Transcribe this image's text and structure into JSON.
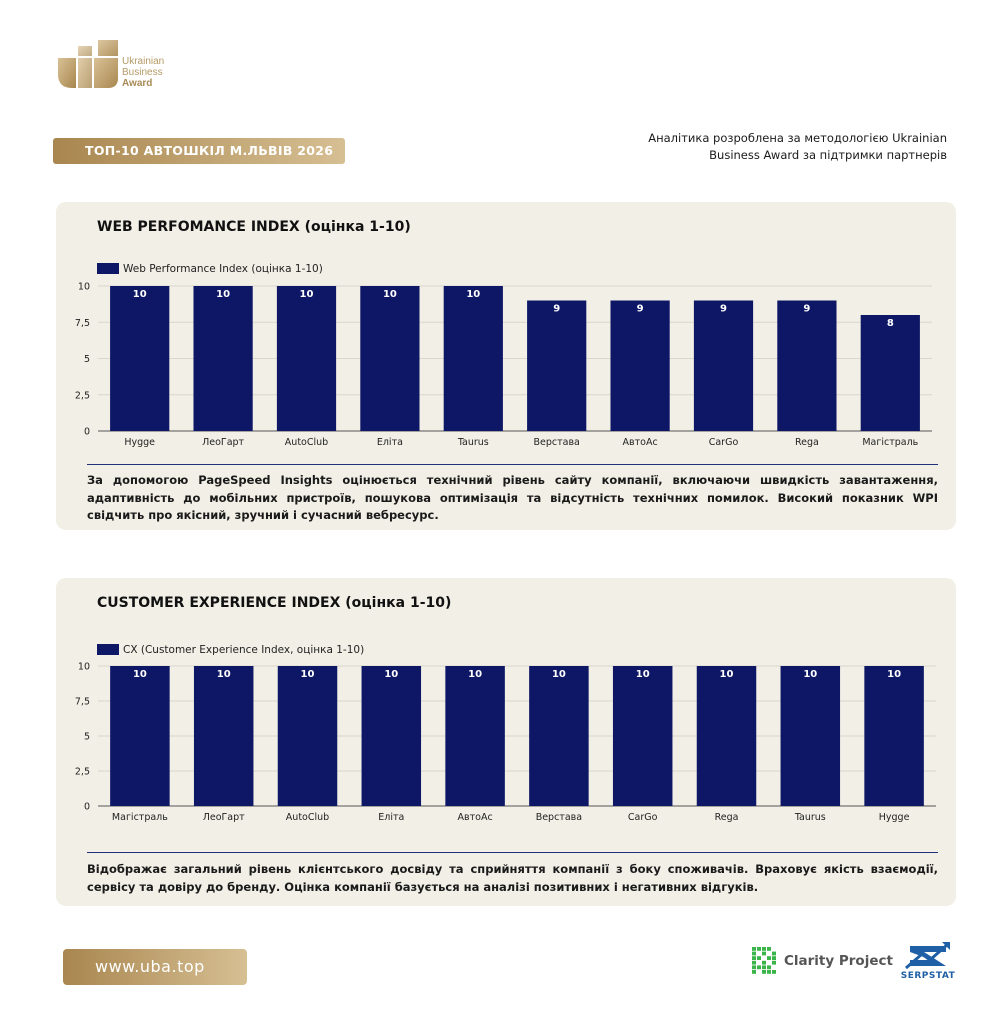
{
  "brand": {
    "logo_line1": "Ukrainian",
    "logo_line2": "Business",
    "logo_line3": "Award",
    "gold": "#b08f58"
  },
  "header": {
    "title": "ТОП-10 АВТОШКІЛ М.ЛЬВІВ 2026",
    "note": "Аналітика розроблена за методологією Ukrainian Business Award за підтримки партнерів"
  },
  "sections": [
    {
      "title": "WEB PERFOMANCE INDEX (оцінка 1-10)",
      "description": "За допомогою PageSpeed Insights оцінюється технічний рівень сайту компанії, включаючи швидкість завантаження, адаптивність до мобільних пристроїв, пошукова оптимізація та відсутність технічних помилок. Високий показник WPI свідчить про якісний, зручний і сучасний вебресурс."
    },
    {
      "title": "CUSTOMER EXPERIENCE INDEX (оцінка 1-10)",
      "description": "Відображає загальний рівень клієнтського досвіду та сприйняття компанії з боку споживачів. Враховує якість взаємодії, сервісу та довіру до бренду. Оцінка компанії базується на аналізі позитивних і негативних відгуків."
    }
  ],
  "chart_data": [
    {
      "type": "bar",
      "categories": [
        "Hygge",
        "ЛеоГарт",
        "AutoClub",
        "Еліта",
        "Taurus",
        "Верстава",
        "АвтоАс",
        "CarGo",
        "Rega",
        "Магістраль"
      ],
      "series": [
        {
          "name": "Web Performance Index (оцінка 1-10)",
          "values": [
            10,
            10,
            10,
            10,
            10,
            9,
            9,
            9,
            9,
            8
          ],
          "color": "#0d1766"
        }
      ],
      "yticks": [
        "0",
        "2,5",
        "5",
        "7,5",
        "10"
      ],
      "ylim": [
        0,
        10
      ],
      "grid": true,
      "legend": "top-left"
    },
    {
      "type": "bar",
      "categories": [
        "Магістраль",
        "ЛеоГарт",
        "AutoClub",
        "Еліта",
        "АвтоАс",
        "Верстава",
        "CarGo",
        "Rega",
        "Taurus",
        "Hygge"
      ],
      "series": [
        {
          "name": "CX (Customer Experience Index, оцінка 1-10)",
          "values": [
            10,
            10,
            10,
            10,
            10,
            10,
            10,
            10,
            10,
            10
          ],
          "color": "#0d1766"
        }
      ],
      "yticks": [
        "0",
        "2,5",
        "5",
        "7,5",
        "10"
      ],
      "ylim": [
        0,
        10
      ],
      "grid": true,
      "legend": "top-left"
    }
  ],
  "footer": {
    "url": "www.uba.top",
    "partner1": "Clarity Project",
    "partner2": "SERPSTAT",
    "clarity_color": "#3bb54a",
    "serpstat_color": "#1f5fa6"
  }
}
